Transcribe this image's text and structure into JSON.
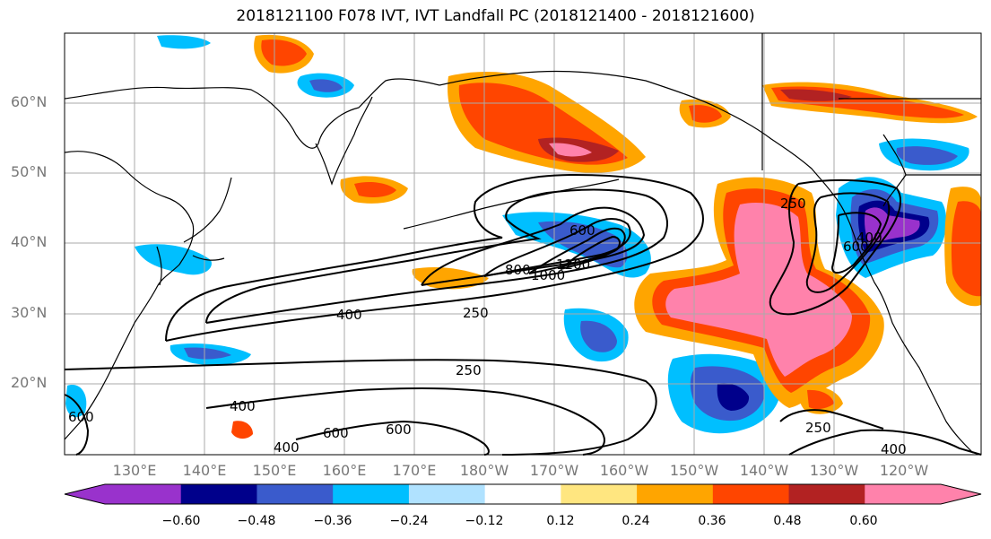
{
  "title": "2018121100 F078 IVT, IVT Landfall PC (2018121400 - 2018121600)",
  "lat_labels": [
    "60°N",
    "50°N",
    "40°N",
    "30°N",
    "20°N"
  ],
  "lon_labels": [
    "130°E",
    "140°E",
    "150°E",
    "160°E",
    "170°E",
    "180°W",
    "170°W",
    "160°W",
    "150°W",
    "140°W",
    "130°W",
    "120°W"
  ],
  "contour_labels": [
    "250",
    "400",
    "600",
    "800",
    "1000",
    "1200",
    "250",
    "400",
    "250",
    "400",
    "600",
    "600",
    "400",
    "250",
    "400",
    "600",
    "600"
  ],
  "colorbar": {
    "ticks": [
      "−0.60",
      "−0.48",
      "−0.36",
      "−0.24",
      "−0.12",
      "0.12",
      "0.24",
      "0.36",
      "0.48",
      "0.60"
    ],
    "colors": [
      "#9932cc",
      "#00008b",
      "#3a5bcc",
      "#00bfff",
      "#b0e2ff",
      "#ffffff",
      "#ffe680",
      "#ffa500",
      "#ff4500",
      "#b22222",
      "#ff82ab"
    ]
  }
}
